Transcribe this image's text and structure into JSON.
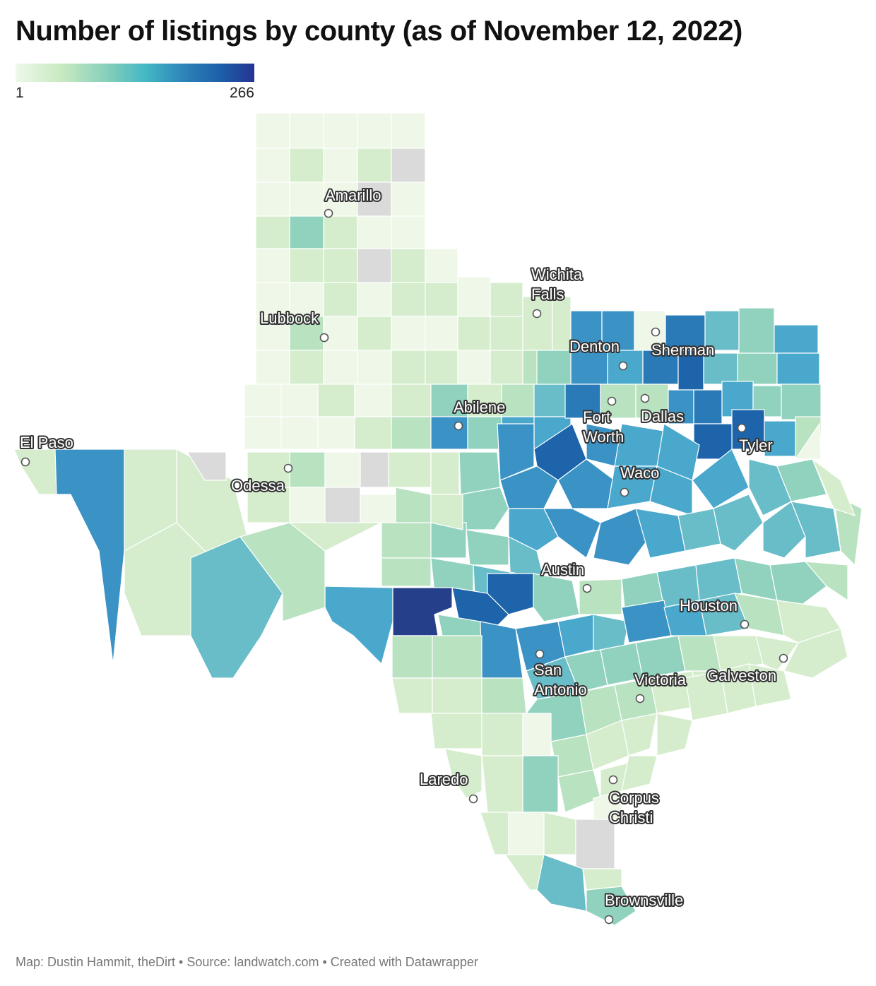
{
  "title": "Number of listings by county (as of November 12, 2022)",
  "legend": {
    "min_label": "1",
    "max_label": "266"
  },
  "colors": {
    "c1": "#eef7e8",
    "c2": "#d5edcd",
    "c3": "#b9e2c0",
    "c4": "#90d2be",
    "c5": "#69bdc8",
    "c6": "#4aa8cd",
    "c7": "#3a92c5",
    "c8": "#2a7ab8",
    "c9": "#1d64aa",
    "c10": "#253f8a",
    "nodata": "#dadada"
  },
  "cities": [
    {
      "name": "Amarillo",
      "lines": [
        "Amarillo"
      ]
    },
    {
      "name": "Wichita Falls",
      "lines": [
        "Wichita",
        "Falls"
      ]
    },
    {
      "name": "Lubbock",
      "lines": [
        "Lubbock"
      ]
    },
    {
      "name": "Denton",
      "lines": [
        "Denton"
      ]
    },
    {
      "name": "Sherman",
      "lines": [
        "Sherman"
      ]
    },
    {
      "name": "Abilene",
      "lines": [
        "Abilene"
      ]
    },
    {
      "name": "Fort Worth",
      "lines": [
        "Fort",
        "Worth"
      ]
    },
    {
      "name": "Dallas",
      "lines": [
        "Dallas"
      ]
    },
    {
      "name": "Tyler",
      "lines": [
        "Tyler"
      ]
    },
    {
      "name": "El Paso",
      "lines": [
        "El Paso"
      ]
    },
    {
      "name": "Odessa",
      "lines": [
        "Odessa"
      ]
    },
    {
      "name": "Waco",
      "lines": [
        "Waco"
      ]
    },
    {
      "name": "Austin",
      "lines": [
        "Austin"
      ]
    },
    {
      "name": "Houston",
      "lines": [
        "Houston"
      ]
    },
    {
      "name": "San Antonio",
      "lines": [
        "San",
        "Antonio"
      ]
    },
    {
      "name": "Victoria",
      "lines": [
        "Victoria"
      ]
    },
    {
      "name": "Galveston",
      "lines": [
        "Galveston"
      ]
    },
    {
      "name": "Laredo",
      "lines": [
        "Laredo"
      ]
    },
    {
      "name": "Corpus Christi",
      "lines": [
        "Corpus",
        "Christi"
      ]
    },
    {
      "name": "Brownsville",
      "lines": [
        "Brownsville"
      ]
    }
  ],
  "source": "Map: Dustin Hammit, theDirt • Source: landwatch.com • Created with Datawrapper"
}
